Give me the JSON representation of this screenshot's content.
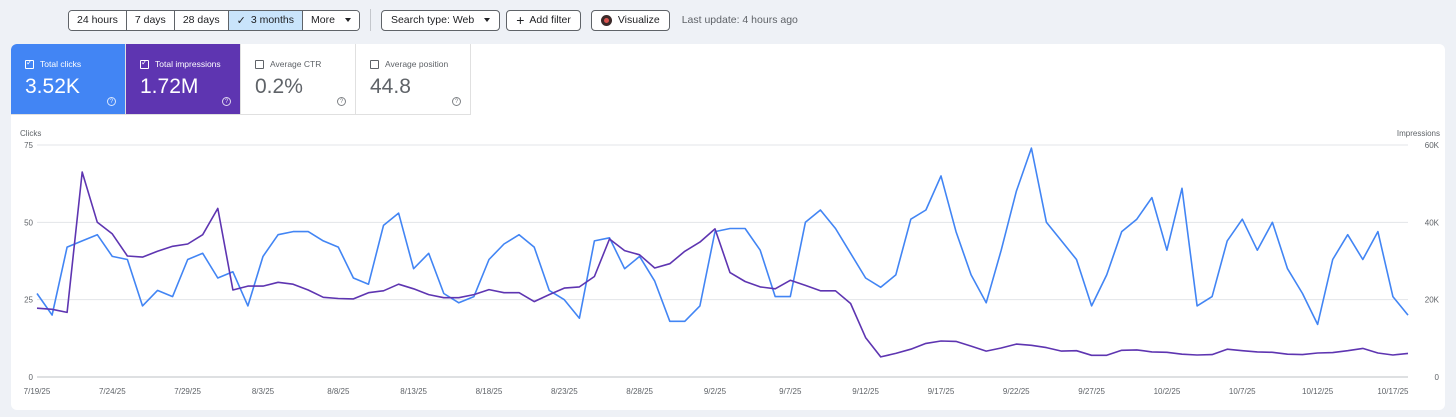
{
  "toolbar": {
    "ranges": [
      "24 hours",
      "7 days",
      "28 days",
      "3 months",
      "More"
    ],
    "active_range": "3 months",
    "search_type": "Search type: Web",
    "add_filter": "Add filter",
    "visualize": "Visualize",
    "last_update": "Last update: 4 hours ago"
  },
  "metrics": {
    "clicks": {
      "label": "Total clicks",
      "value": "3.52K",
      "checked": true,
      "color": "#4285f4"
    },
    "impressions": {
      "label": "Total impressions",
      "value": "1.72M",
      "checked": true,
      "color": "#5e35b1"
    },
    "ctr": {
      "label": "Average CTR",
      "value": "0.2%",
      "checked": false
    },
    "position": {
      "label": "Average position",
      "value": "44.8",
      "checked": false
    }
  },
  "help_glyph": "?",
  "chart_data": {
    "type": "line",
    "left_axis_label": "Clicks",
    "right_axis_label": "Impressions",
    "left_ticks": [
      "0",
      "25",
      "50",
      "75"
    ],
    "right_ticks": [
      "0",
      "20K",
      "40K",
      "60K"
    ],
    "ylim_left": [
      0,
      75
    ],
    "ylim_right": [
      0,
      60000
    ],
    "x_tick_labels": [
      "7/19/25",
      "7/24/25",
      "7/29/25",
      "8/3/25",
      "8/8/25",
      "8/13/25",
      "8/18/25",
      "8/23/25",
      "8/28/25",
      "9/2/25",
      "9/7/25",
      "9/12/25",
      "9/17/25",
      "9/22/25",
      "9/27/25",
      "10/2/25",
      "10/7/25",
      "10/12/25",
      "10/17/25"
    ],
    "grid": true,
    "series": [
      {
        "name": "Total clicks",
        "axis": "left",
        "color": "#4285f4",
        "values": [
          27,
          20,
          42,
          44,
          46,
          39,
          38,
          23,
          28,
          26,
          38,
          40,
          32,
          34,
          23,
          39,
          46,
          47,
          47,
          44,
          42,
          32,
          30,
          49,
          53,
          35,
          40,
          27,
          24,
          26,
          38,
          43,
          46,
          42,
          28,
          25,
          19,
          44,
          45,
          35,
          39,
          31,
          18,
          18,
          23,
          47,
          48,
          48,
          41,
          26,
          26,
          50,
          54,
          48,
          40,
          32,
          29,
          33,
          51,
          54,
          65,
          47,
          33,
          24,
          41,
          60,
          74,
          50,
          44,
          38,
          23,
          33,
          47,
          51,
          58,
          41,
          61,
          23,
          26,
          44,
          51,
          41,
          50,
          35,
          27,
          17,
          38,
          46,
          38,
          47,
          26,
          20
        ]
      },
      {
        "name": "Total impressions",
        "axis": "right",
        "color": "#5e35b1",
        "values": [
          17800,
          17500,
          16700,
          53000,
          40000,
          37000,
          31300,
          31000,
          32500,
          33800,
          34400,
          36800,
          43600,
          22500,
          23500,
          23500,
          24500,
          24000,
          22500,
          20600,
          20300,
          20200,
          21800,
          22300,
          24000,
          22800,
          21300,
          20500,
          20500,
          21300,
          22600,
          21800,
          21800,
          19500,
          21300,
          23000,
          23300,
          26000,
          35700,
          32700,
          31600,
          28200,
          29300,
          32500,
          34900,
          38300,
          27000,
          24700,
          23300,
          22800,
          25000,
          23700,
          22300,
          22300,
          19000,
          10200,
          5200,
          6100,
          7200,
          8700,
          9300,
          9200,
          8000,
          6700,
          7500,
          8500,
          8200,
          7600,
          6700,
          6800,
          5600,
          5600,
          6900,
          7000,
          6500,
          6400,
          5900,
          5700,
          5800,
          7200,
          6800,
          6500,
          6400,
          5900,
          5800,
          6200,
          6300,
          6800,
          7400,
          6200,
          5700,
          6100
        ]
      }
    ]
  }
}
